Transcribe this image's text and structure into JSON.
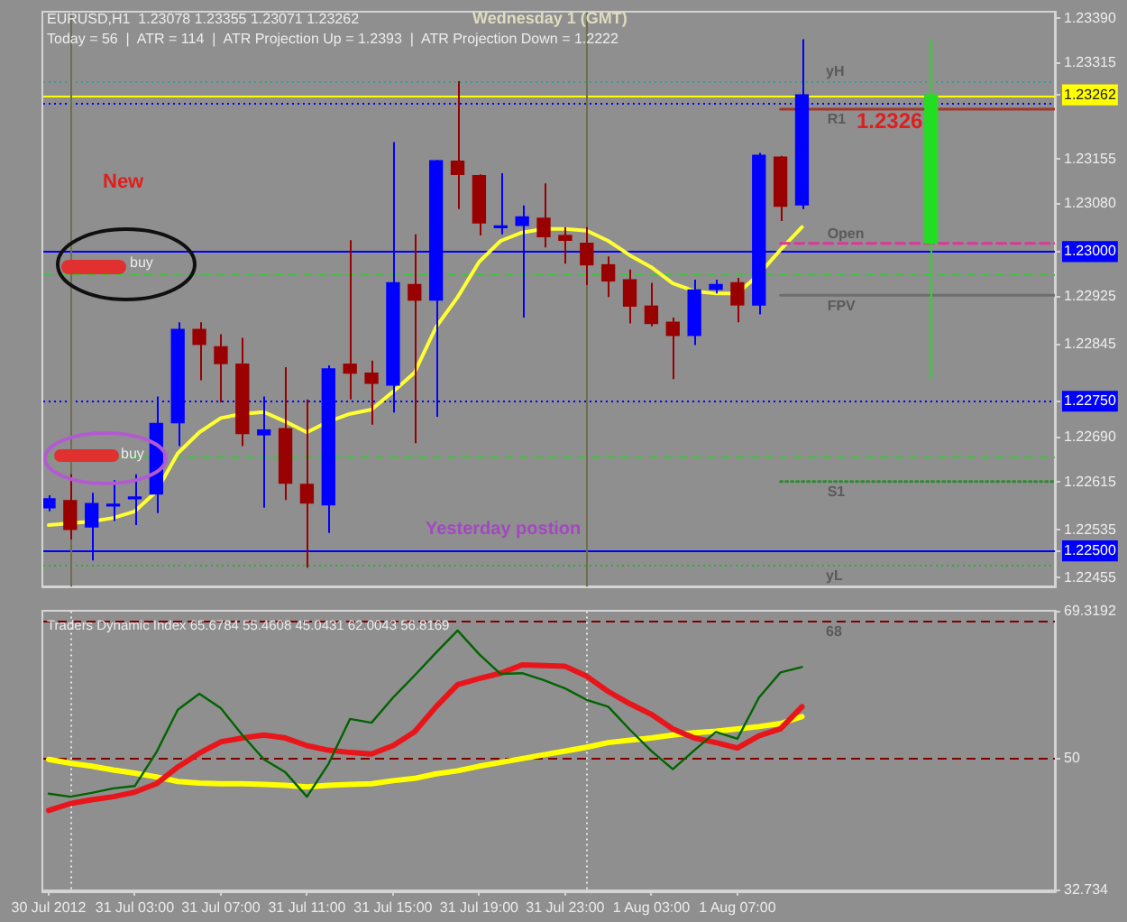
{
  "chart_data": [
    {
      "type": "candlestick",
      "title": "EURUSD,H1  1.23078 1.23355 1.23071 1.23262",
      "subtitle": "Today = 56  |  ATR = 114  |  ATR Projection Up = 1.2393  |  ATR Projection Down = 1.2222",
      "annotations": [
        "Wednesday 1 (GMT)",
        "New",
        "buy",
        "buy",
        "Yesterday postion",
        "1.2326"
      ],
      "x": [
        "2012-07-30T23:00",
        "2012-07-31T00:00",
        "2012-07-31T01:00",
        "2012-07-31T02:00",
        "2012-07-31T03:00",
        "2012-07-31T04:00",
        "2012-07-31T05:00",
        "2012-07-31T06:00",
        "2012-07-31T07:00",
        "2012-07-31T08:00",
        "2012-07-31T09:00",
        "2012-07-31T10:00",
        "2012-07-31T11:00",
        "2012-07-31T12:00",
        "2012-07-31T13:00",
        "2012-07-31T14:00",
        "2012-07-31T15:00",
        "2012-07-31T16:00",
        "2012-07-31T17:00",
        "2012-07-31T18:00",
        "2012-07-31T19:00",
        "2012-07-31T20:00",
        "2012-07-31T21:00",
        "2012-07-31T22:00",
        "2012-07-31T23:00",
        "2012-08-01T00:00",
        "2012-08-01T01:00",
        "2012-08-01T02:00",
        "2012-08-01T03:00",
        "2012-08-01T04:00",
        "2012-08-01T05:00",
        "2012-08-01T06:00",
        "2012-08-01T07:00",
        "2012-08-01T08:00",
        "2012-08-01T09:00",
        "2012-08-01T10:00"
      ],
      "ohlc": [
        [
          1.22572,
          1.22593,
          1.22566,
          1.22587
        ],
        [
          1.22584,
          1.22628,
          1.22519,
          1.22536
        ],
        [
          1.2254,
          1.22597,
          1.22484,
          1.22579
        ],
        [
          1.22575,
          1.22618,
          1.2255,
          1.22578
        ],
        [
          1.22587,
          1.22628,
          1.22543,
          1.2259
        ],
        [
          1.22595,
          1.22758,
          1.22563,
          1.22713
        ],
        [
          1.22714,
          1.22882,
          1.22675,
          1.2287
        ],
        [
          1.2287,
          1.22882,
          1.22785,
          1.22845
        ],
        [
          1.22841,
          1.22862,
          1.22748,
          1.22813
        ],
        [
          1.22812,
          1.22856,
          1.22675,
          1.22696
        ],
        [
          1.22694,
          1.22758,
          1.22572,
          1.22702
        ],
        [
          1.22704,
          1.22807,
          1.22585,
          1.22613
        ],
        [
          1.22611,
          1.22753,
          1.22472,
          1.2258
        ],
        [
          1.22577,
          1.2281,
          1.2253,
          1.22804
        ],
        [
          1.22812,
          1.23019,
          1.22753,
          1.22797
        ],
        [
          1.22797,
          1.22818,
          1.22711,
          1.2278
        ],
        [
          1.22777,
          1.23183,
          1.22731,
          1.22948
        ],
        [
          1.22945,
          1.23029,
          1.2268,
          1.22919
        ],
        [
          1.22919,
          1.23153,
          1.22724,
          1.23152
        ],
        [
          1.23151,
          1.23285,
          1.23071,
          1.23129
        ],
        [
          1.23127,
          1.23129,
          1.23027,
          1.23048
        ],
        [
          1.2304,
          1.23131,
          1.23029,
          1.23042
        ],
        [
          1.23044,
          1.23077,
          1.2289,
          1.23058
        ],
        [
          1.23056,
          1.23114,
          1.23007,
          1.23025
        ],
        [
          1.23027,
          1.23041,
          1.2298,
          1.23019
        ],
        [
          1.23014,
          1.23041,
          1.22944,
          1.22978
        ],
        [
          1.22978,
          1.22992,
          1.22924,
          1.22951
        ],
        [
          1.22953,
          1.2297,
          1.2288,
          1.22909
        ],
        [
          1.22909,
          1.22948,
          1.22875,
          1.2288
        ],
        [
          1.22882,
          1.2289,
          1.22787,
          1.2286
        ],
        [
          1.2286,
          1.22953,
          1.22844,
          1.22936
        ],
        [
          1.22937,
          1.22953,
          1.2293,
          1.22945
        ],
        [
          1.22948,
          1.22956,
          1.22882,
          1.22911
        ],
        [
          1.22911,
          1.23165,
          1.22895,
          1.23161
        ],
        [
          1.23158,
          1.2316,
          1.23051,
          1.23076
        ],
        [
          1.23078,
          1.23355,
          1.23071,
          1.23262
        ]
      ],
      "colors": [
        "#0000ff",
        "#990000",
        "#0000ff",
        "#0000ff",
        "#0000ff",
        "#0000ff",
        "#0000ff",
        "#990000",
        "#990000",
        "#990000",
        "#0000ff",
        "#990000",
        "#990000",
        "#0000ff",
        "#990000",
        "#990000",
        "#0000ff",
        "#990000",
        "#0000ff",
        "#990000",
        "#990000",
        "#0000ff",
        "#0000ff",
        "#990000",
        "#990000",
        "#990000",
        "#990000",
        "#990000",
        "#990000",
        "#990000",
        "#0000ff",
        "#0000ff",
        "#990000",
        "#0000ff",
        "#990000",
        "#0000ff"
      ],
      "series": [
        {
          "type": "line",
          "color": "#ffff33",
          "values": [
            1.22543,
            1.22546,
            1.22549,
            1.22555,
            1.22566,
            1.22599,
            1.22663,
            1.22698,
            1.22722,
            1.22729,
            1.22732,
            1.22716,
            1.22698,
            1.22716,
            1.22729,
            1.22736,
            1.22766,
            1.22798,
            1.22874,
            1.22924,
            1.22983,
            1.23018,
            1.23032,
            1.23038,
            1.23038,
            1.23035,
            1.23018,
            1.22994,
            1.22974,
            1.22947,
            1.22934,
            1.2293,
            1.2293,
            1.22962,
            1.23003,
            1.23041
          ]
        },
        {
          "type": "candlestick",
          "color": "#22dd22",
          "x": [
            "2012-08-01T16:00"
          ],
          "ohlc": [
            [
              1.23014,
              1.23355,
              1.22787,
              1.23262
            ]
          ]
        },
        {
          "type": "line",
          "name": "R1",
          "color": "#a0382c",
          "x": [
            "2012-08-01T09:00",
            "2012-08-01T21:45"
          ],
          "values": [
            1.23238,
            1.23238
          ]
        },
        {
          "type": "line",
          "name": "Open",
          "color": "#e0359a",
          "line_style": "dashed",
          "x": [
            "2012-08-01T09:00",
            "2012-08-01T21:45"
          ],
          "values": [
            1.23014,
            1.23014
          ]
        },
        {
          "type": "line",
          "name": "FPV",
          "color": "#6e6e6e",
          "x": [
            "2012-08-01T09:00",
            "2012-08-01T21:45"
          ],
          "values": [
            1.22927,
            1.22927
          ]
        },
        {
          "type": "line",
          "name": "S1",
          "color": "#2e8b2e",
          "line_style": "dotted",
          "x": [
            "2012-08-01T09:00",
            "2012-08-01T21:45"
          ],
          "values": [
            1.22616,
            1.22616
          ]
        }
      ],
      "xlim": [
        "2012-07-30T22:45",
        "2012-08-01T21:45"
      ],
      "ylim": [
        1.2244,
        1.234
      ],
      "yticks": [
        {
          "value": 1.2339,
          "label": "1.23390"
        },
        1.23315,
        1.23262,
        1.23155,
        {
          "value": 1.2308,
          "label": "1.23080"
        },
        {
          "value": 1.23,
          "label": "1.23000"
        },
        1.22925,
        1.22845,
        {
          "value": 1.2275,
          "label": "1.22750"
        },
        {
          "value": 1.2269,
          "label": "1.22690"
        },
        1.22615,
        1.22535,
        {
          "value": 1.225,
          "label": "1.22500"
        },
        1.22455
      ],
      "tick_labels": "y",
      "ref_lines": [
        {
          "axis": "y",
          "value": 1.23285,
          "label": "yH",
          "color": "#3c9c8c",
          "line_style": "dotted"
        },
        {
          "axis": "y",
          "value": 1.23262,
          "color": "#ffff00"
        },
        {
          "axis": "y",
          "value": 1.2325,
          "color": "#0000ff",
          "line_style": "dotted"
        },
        {
          "axis": "y",
          "value": 1.23,
          "color": "#0000ff"
        },
        {
          "axis": "y",
          "value": 1.22962,
          "color": "#33cc33",
          "line_style": "dashed"
        },
        {
          "axis": "y",
          "value": 1.2275,
          "color": "#0000ff",
          "line_style": "dotted"
        },
        {
          "axis": "y",
          "value": 1.22657,
          "color": "#33cc33",
          "line_style": "dashed"
        },
        {
          "axis": "y",
          "value": 1.225,
          "color": "#0000ff"
        },
        {
          "axis": "y",
          "value": 1.22476,
          "label": "yL",
          "color": "#33aa33",
          "line_style": "dotted"
        },
        {
          "axis": "x",
          "value": "2012-07-31T00:00",
          "color": "#6e6e50"
        },
        {
          "axis": "x",
          "value": "2012-08-01T00:00",
          "color": "#6e6e50"
        }
      ]
    },
    {
      "type": "line",
      "title": "Traders Dynamic Index 65.6784 55.4608 45.0431 62.0043 56.8169",
      "x": [
        "2012-07-30T23:00",
        "2012-07-31T00:00",
        "2012-07-31T01:00",
        "2012-07-31T02:00",
        "2012-07-31T03:00",
        "2012-07-31T04:00",
        "2012-07-31T05:00",
        "2012-07-31T06:00",
        "2012-07-31T07:00",
        "2012-07-31T08:00",
        "2012-07-31T09:00",
        "2012-07-31T10:00",
        "2012-07-31T11:00",
        "2012-07-31T12:00",
        "2012-07-31T13:00",
        "2012-07-31T14:00",
        "2012-07-31T15:00",
        "2012-07-31T16:00",
        "2012-07-31T17:00",
        "2012-07-31T18:00",
        "2012-07-31T19:00",
        "2012-07-31T20:00",
        "2012-07-31T21:00",
        "2012-07-31T22:00",
        "2012-07-31T23:00",
        "2012-08-01T00:00",
        "2012-08-01T01:00",
        "2012-08-01T02:00",
        "2012-08-01T03:00",
        "2012-08-01T04:00",
        "2012-08-01T05:00",
        "2012-08-01T06:00",
        "2012-08-01T07:00",
        "2012-08-01T08:00",
        "2012-08-01T09:00",
        "2012-08-01T10:00"
      ],
      "series": [
        {
          "color": "#ffff00",
          "values": [
            49.9,
            49.4,
            49.0,
            48.5,
            48.1,
            47.6,
            47.0,
            46.8,
            46.7,
            46.7,
            46.6,
            46.5,
            46.3,
            46.5,
            46.6,
            46.7,
            47.1,
            47.4,
            48.0,
            48.4,
            49.0,
            49.5,
            50.0,
            50.5,
            51.0,
            51.5,
            52.1,
            52.4,
            52.7,
            53.1,
            53.4,
            53.6,
            53.9,
            54.2,
            54.6,
            55.5
          ]
        },
        {
          "color": "#e8151b",
          "values": [
            43.2,
            44.1,
            44.6,
            45.0,
            45.6,
            46.7,
            48.9,
            50.7,
            52.2,
            52.7,
            53.1,
            52.7,
            51.7,
            51.1,
            50.8,
            50.6,
            51.7,
            53.5,
            56.8,
            59.7,
            60.5,
            61.2,
            62.3,
            62.2,
            62.1,
            60.8,
            58.8,
            57.2,
            55.8,
            53.9,
            52.7,
            52.1,
            51.4,
            53.0,
            53.9,
            56.8
          ]
        },
        {
          "color": "#006400",
          "values": [
            45.4,
            45.0,
            45.5,
            46.1,
            46.4,
            50.8,
            56.4,
            58.5,
            56.6,
            53.1,
            49.9,
            48.2,
            45.0,
            49.3,
            55.2,
            54.7,
            58.0,
            60.9,
            63.9,
            66.8,
            63.7,
            61.1,
            61.2,
            60.3,
            59.2,
            57.7,
            56.8,
            53.8,
            51.0,
            48.6,
            51.1,
            53.5,
            52.6,
            58.0,
            61.3,
            62.0
          ]
        }
      ],
      "xlim": [
        "2012-07-30T22:45",
        "2012-08-01T21:45"
      ],
      "xticks": [
        {
          "value": "2012-07-30T23:00",
          "label": "30 Jul 2012"
        },
        {
          "value": "2012-07-31T03:00",
          "label": "31 Jul 03:00"
        },
        {
          "value": "2012-07-31T07:00",
          "label": "31 Jul 07:00"
        },
        {
          "value": "2012-07-31T11:00",
          "label": "31 Jul 11:00"
        },
        {
          "value": "2012-07-31T15:00",
          "label": "31 Jul 15:00"
        },
        {
          "value": "2012-07-31T19:00",
          "label": "31 Jul 19:00"
        },
        {
          "value": "2012-07-31T23:00",
          "label": "31 Jul 23:00"
        },
        {
          "value": "2012-08-01T03:00",
          "label": "1 Aug 03:00"
        },
        {
          "value": "2012-08-01T07:00",
          "label": "1 Aug 07:00"
        }
      ],
      "ylim": [
        32.734,
        69.3192
      ],
      "yticks": [
        69.3192,
        50,
        32.734
      ],
      "ref_lines": [
        {
          "axis": "y",
          "value": 68,
          "label": "68",
          "color": "#800000",
          "line_style": "dashed"
        },
        {
          "axis": "y",
          "value": 50,
          "color": "#800000",
          "line_style": "dashed"
        },
        {
          "axis": "x",
          "value": "2012-07-31T00:00",
          "color": "#e6e6e6",
          "line_style": "dotted"
        },
        {
          "axis": "x",
          "value": "2012-08-01T00:00",
          "color": "#e6e6e6",
          "line_style": "dotted"
        }
      ]
    }
  ]
}
